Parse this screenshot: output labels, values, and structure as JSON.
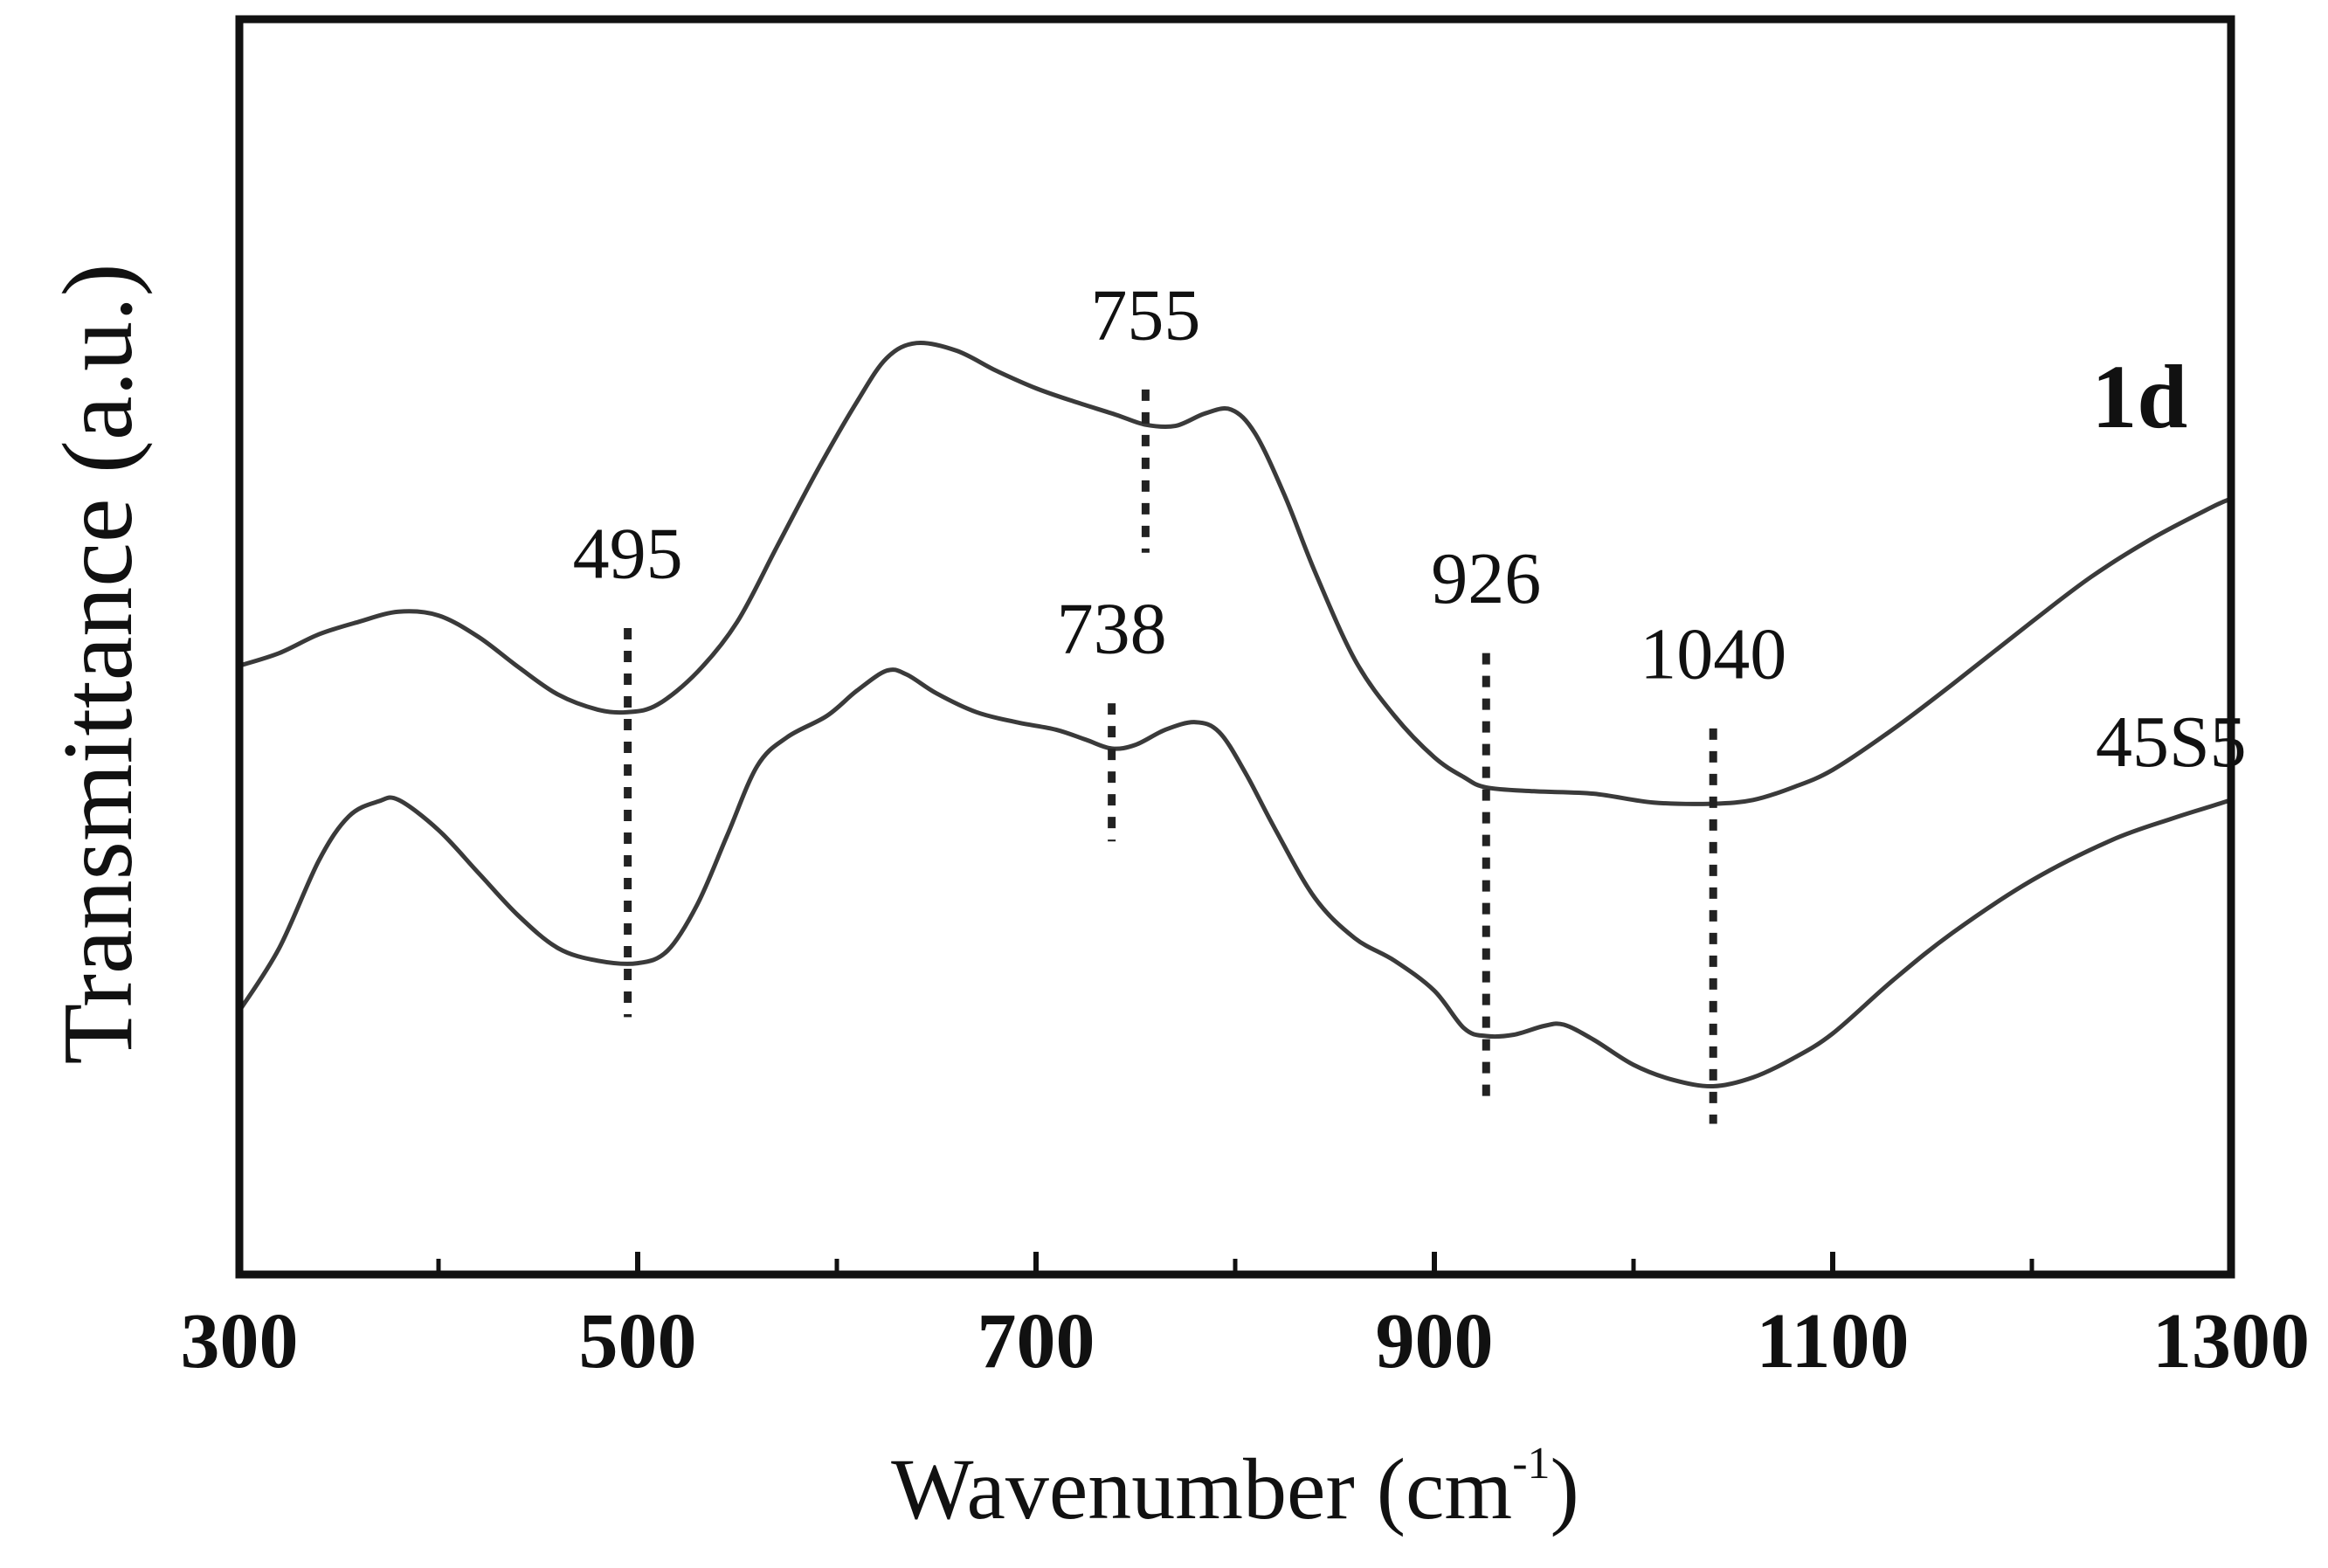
{
  "chart_data": {
    "type": "line",
    "xlabel": "Wavenumber (cm",
    "xlabel_sup": "-1",
    "xlabel_close": ")",
    "ylabel": "Transmittance (a.u.)",
    "xlim": [
      300,
      1300
    ],
    "ylim": [
      0,
      100
    ],
    "x_ticks": [
      300,
      500,
      700,
      900,
      1100,
      1300
    ],
    "y_ticks_shown": false,
    "grid": false,
    "line_color": "#3a3a3a",
    "marker_color": "#222222",
    "series": [
      {
        "name": "1d",
        "points": [
          [
            300,
            48.5
          ],
          [
            320,
            49.5
          ],
          [
            340,
            51.0
          ],
          [
            360,
            52.0
          ],
          [
            380,
            52.8
          ],
          [
            400,
            52.5
          ],
          [
            420,
            50.8
          ],
          [
            440,
            48.4
          ],
          [
            460,
            46.2
          ],
          [
            480,
            45.0
          ],
          [
            495,
            44.8
          ],
          [
            510,
            45.4
          ],
          [
            530,
            48.0
          ],
          [
            550,
            52.0
          ],
          [
            570,
            58.0
          ],
          [
            590,
            64.0
          ],
          [
            610,
            69.5
          ],
          [
            625,
            73.0
          ],
          [
            640,
            74.2
          ],
          [
            660,
            73.6
          ],
          [
            680,
            72.0
          ],
          [
            700,
            70.6
          ],
          [
            720,
            69.5
          ],
          [
            740,
            68.5
          ],
          [
            755,
            67.7
          ],
          [
            770,
            67.6
          ],
          [
            785,
            68.6
          ],
          [
            798,
            68.9
          ],
          [
            810,
            67.0
          ],
          [
            825,
            62.0
          ],
          [
            840,
            56.0
          ],
          [
            860,
            49.0
          ],
          [
            880,
            44.5
          ],
          [
            900,
            41.2
          ],
          [
            915,
            39.6
          ],
          [
            926,
            38.8
          ],
          [
            950,
            38.5
          ],
          [
            980,
            38.3
          ],
          [
            1010,
            37.6
          ],
          [
            1040,
            37.5
          ],
          [
            1060,
            37.8
          ],
          [
            1080,
            38.8
          ],
          [
            1100,
            40.2
          ],
          [
            1130,
            43.4
          ],
          [
            1160,
            47.0
          ],
          [
            1200,
            52.0
          ],
          [
            1230,
            55.6
          ],
          [
            1260,
            58.6
          ],
          [
            1290,
            61.1
          ],
          [
            1300,
            61.8
          ]
        ]
      },
      {
        "name": "45S5",
        "points": [
          [
            300,
            21.0
          ],
          [
            320,
            26.0
          ],
          [
            340,
            33.0
          ],
          [
            355,
            36.5
          ],
          [
            370,
            37.7
          ],
          [
            380,
            37.8
          ],
          [
            400,
            35.4
          ],
          [
            420,
            32.0
          ],
          [
            440,
            28.6
          ],
          [
            460,
            26.0
          ],
          [
            480,
            25.0
          ],
          [
            500,
            24.8
          ],
          [
            515,
            25.8
          ],
          [
            530,
            29.5
          ],
          [
            545,
            35.0
          ],
          [
            560,
            40.5
          ],
          [
            575,
            42.8
          ],
          [
            595,
            44.5
          ],
          [
            610,
            46.5
          ],
          [
            625,
            48.1
          ],
          [
            635,
            47.8
          ],
          [
            650,
            46.3
          ],
          [
            670,
            44.8
          ],
          [
            690,
            44.0
          ],
          [
            710,
            43.4
          ],
          [
            725,
            42.6
          ],
          [
            738,
            41.9
          ],
          [
            750,
            42.2
          ],
          [
            765,
            43.4
          ],
          [
            780,
            44.0
          ],
          [
            792,
            43.2
          ],
          [
            805,
            40.0
          ],
          [
            820,
            35.5
          ],
          [
            840,
            30.0
          ],
          [
            860,
            26.8
          ],
          [
            880,
            25.0
          ],
          [
            900,
            22.6
          ],
          [
            915,
            19.6
          ],
          [
            926,
            19.0
          ],
          [
            940,
            19.1
          ],
          [
            955,
            19.8
          ],
          [
            965,
            19.9
          ],
          [
            980,
            18.7
          ],
          [
            1000,
            16.7
          ],
          [
            1020,
            15.5
          ],
          [
            1040,
            15.0
          ],
          [
            1060,
            15.7
          ],
          [
            1080,
            17.2
          ],
          [
            1100,
            19.2
          ],
          [
            1130,
            23.4
          ],
          [
            1160,
            27.2
          ],
          [
            1200,
            31.4
          ],
          [
            1240,
            34.6
          ],
          [
            1270,
            36.3
          ],
          [
            1290,
            37.3
          ],
          [
            1300,
            37.8
          ]
        ]
      }
    ],
    "series_labels": [
      {
        "text": "1d",
        "x": 1230,
        "y": 67.5,
        "size": "large"
      },
      {
        "text": "45S5",
        "x": 1232,
        "y": 40.5,
        "size": "normal"
      }
    ],
    "peak_markers": [
      {
        "label": "495",
        "x": 495,
        "y_from": 20.5,
        "y_to": 51.5,
        "label_y": 55.5
      },
      {
        "label": "755",
        "x": 755,
        "y_from": 57.5,
        "y_to": 70.5,
        "label_y": 74.5
      },
      {
        "label": "738",
        "x": 738,
        "y_from": 34.5,
        "y_to": 45.5,
        "label_y": 49.5
      },
      {
        "label": "926",
        "x": 926,
        "y_from": 13.5,
        "y_to": 49.5,
        "label_y": 53.5
      },
      {
        "label": "1040",
        "x": 1040,
        "y_from": 12.0,
        "y_to": 43.5,
        "label_y": 47.5
      }
    ]
  }
}
